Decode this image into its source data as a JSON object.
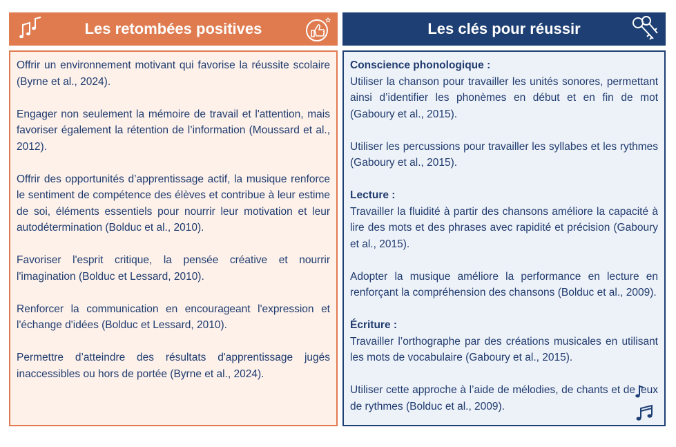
{
  "left": {
    "title": "Les retombées positives",
    "items": [
      "Offrir un environnement motivant qui favorise la réussite scolaire (Byrne et al., 2024).",
      "Engager non seulement la mémoire de travail et l'attention, mais favoriser également la rétention de l’information (Moussard et al., 2012).",
      "Offrir des opportunités d’apprentissage actif, la musique renforce le sentiment de compétence des élèves et contribue à leur estime de soi, éléments essentiels pour nourrir leur motivation et leur autodétermination (Bolduc et al., 2010).",
      "Favoriser l'esprit critique, la pensée créative et nourrir l'imagination (Bolduc et Lessard, 2010).",
      "Renforcer la communication en encourageant l'expression et l'échange d'idées (Bolduc et Lessard, 2010).",
      "Permettre d’atteindre des résultats d'apprentissage jugés inaccessibles ou hors de portée (Byrne et al., 2024)."
    ]
  },
  "right": {
    "title": "Les clés pour réussir",
    "sections": [
      {
        "heading": "Conscience phonologique :",
        "paragraphs": [
          "Utiliser la chanson pour travailler les unités sonores, permettant ainsi d’identifier les phonèmes en début et en fin de mot (Gaboury et al., 2015).",
          "Utiliser les percussions pour travailler les syllabes et les rythmes (Gaboury et al., 2015)."
        ]
      },
      {
        "heading": "Lecture :",
        "paragraphs": [
          "Travailler la fluidité à partir des chansons améliore la capacité à lire des mots et des phrases avec rapidité et précision (Gaboury et al., 2015).",
          "Adopter la musique améliore la performance en lecture en renforçant la compréhension des chansons (Bolduc et al., 2009)."
        ]
      },
      {
        "heading": "Écriture :",
        "paragraphs": [
          "Travailler l’orthographe par des créations musicales en utilisant les mots de vocabulaire (Gaboury et al., 2015).",
          "Utiliser cette approche à l’aide de mélodies, de chants et de jeux de rythmes (Bolduc et al., 2009)."
        ]
      }
    ]
  }
}
